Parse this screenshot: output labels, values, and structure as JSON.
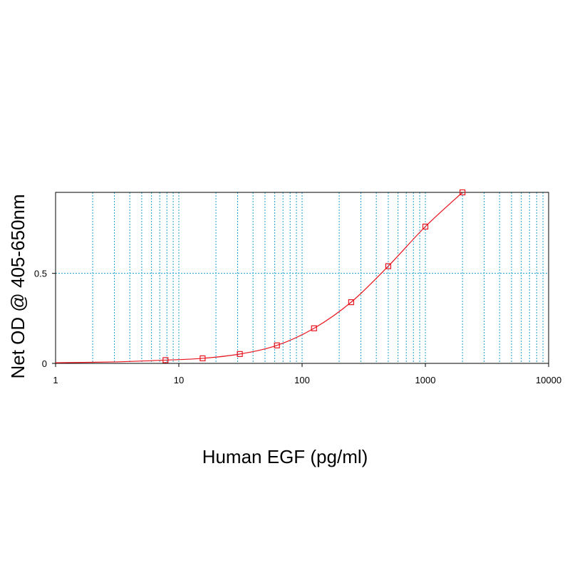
{
  "chart_data": {
    "type": "line",
    "title": "",
    "xlabel": "Human EGF (pg/ml)",
    "ylabel": "Net OD @ 405-650nm",
    "x_scale": "log",
    "xlim": [
      1,
      10000
    ],
    "ylim": [
      0,
      0.95
    ],
    "x_tick_labels": [
      "1",
      "10",
      "100",
      "1000",
      "10000"
    ],
    "y_ticks": [
      0,
      0.5
    ],
    "y_tick_labels": [
      "0",
      "0.5"
    ],
    "grid": true,
    "grid_color": "#1a9fd0",
    "series_color": "#e8141e",
    "series": [
      {
        "x": [
          7.8,
          15.6,
          31.25,
          62.5,
          125,
          250,
          500,
          1000,
          2000
        ],
        "y": [
          0.018,
          0.028,
          0.052,
          0.1,
          0.195,
          0.34,
          0.54,
          0.76,
          0.95
        ]
      }
    ]
  }
}
